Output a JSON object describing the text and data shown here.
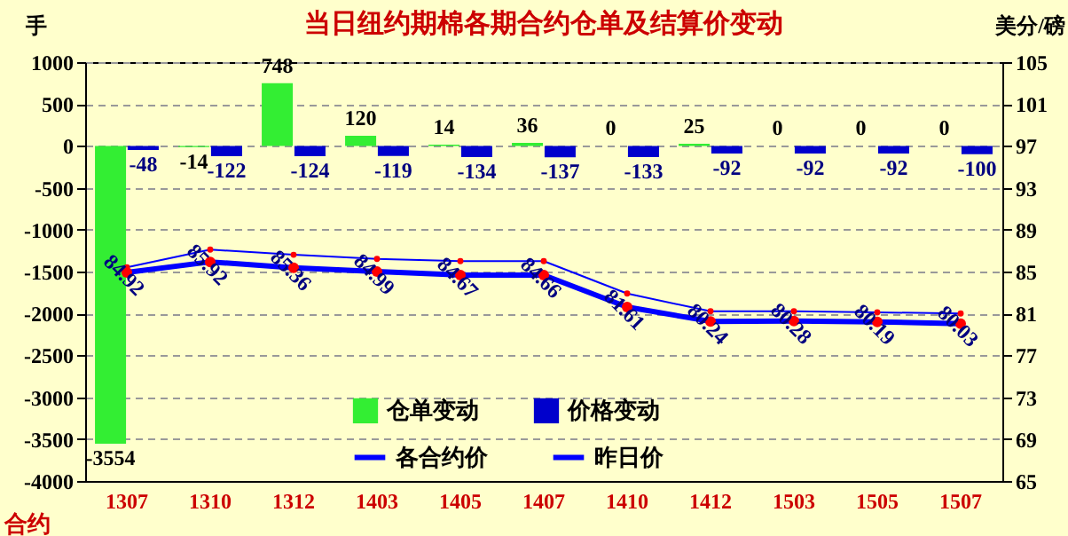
{
  "chart_data": {
    "type": "bar",
    "title": "当日纽约期棉各期合约仓单及结算价变动",
    "xlabel": "合约",
    "ylabel": "手",
    "y2label": "美分/磅",
    "categories": [
      "1307",
      "1310",
      "1312",
      "1403",
      "1405",
      "1407",
      "1410",
      "1412",
      "1503",
      "1505",
      "1507"
    ],
    "series": [
      {
        "name": "仓单变动",
        "color": "#33ee33",
        "values": [
          -3554,
          -14,
          748,
          120,
          14,
          36,
          0,
          25,
          0,
          0,
          0
        ],
        "value_labels": [
          "-3554",
          "-14",
          "748",
          "120",
          "14",
          "36",
          "0",
          "25",
          "0",
          "0",
          "0"
        ]
      },
      {
        "name": "价格变动",
        "color": "#0000cc",
        "values": [
          -48,
          -122,
          -124,
          -119,
          -134,
          -137,
          -133,
          -92,
          -92,
          -92,
          -100
        ],
        "value_labels": [
          "-48",
          "-122",
          "-124",
          "-119",
          "-134",
          "-137",
          "-133",
          "-92",
          "-92",
          "-92",
          "-100"
        ]
      },
      {
        "name": "各合约价",
        "type": "line",
        "axis": "y2",
        "color": "#0000ff",
        "values": [
          84.92,
          85.92,
          85.36,
          84.99,
          84.67,
          84.66,
          81.61,
          80.24,
          80.28,
          80.19,
          80.03
        ],
        "value_labels": [
          "84.92",
          "85.92",
          "85.36",
          "84.99",
          "84.67",
          "84.66",
          "81.61",
          "80.24",
          "80.28",
          "80.19",
          "80.03"
        ]
      },
      {
        "name": "昨日价",
        "type": "line",
        "axis": "y2",
        "color": "#0000ff",
        "values": [
          85.4,
          87.1,
          86.6,
          86.2,
          86.0,
          86.0,
          82.9,
          81.2,
          81.2,
          81.1,
          81.0
        ]
      }
    ],
    "ylim": [
      -4000,
      1000
    ],
    "yticks": [
      -4000,
      -3500,
      -3000,
      -2500,
      -2000,
      -1500,
      -1000,
      -500,
      0,
      500,
      1000
    ],
    "y2lim": [
      65,
      105
    ],
    "y2ticks": [
      65,
      69,
      73,
      77,
      81,
      85,
      89,
      93,
      97,
      101,
      105
    ],
    "grid": "y",
    "legend": "bottom",
    "marker": "circle"
  }
}
